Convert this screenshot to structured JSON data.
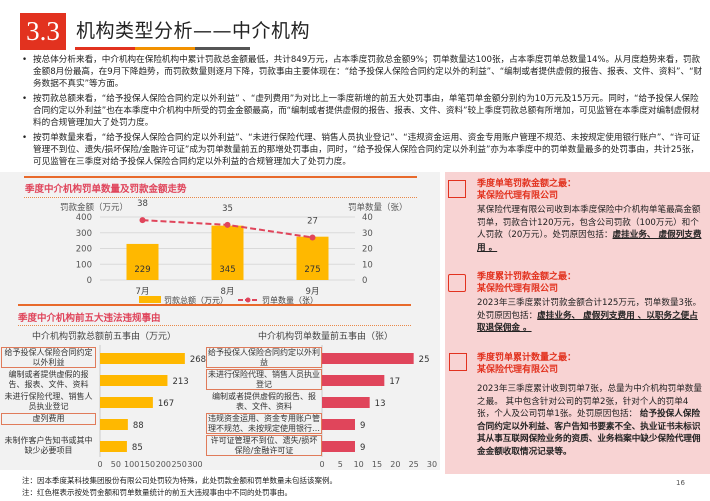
{
  "header": {
    "section_number": "3.3",
    "title": "机构类型分析——中介机构",
    "underline_colors": [
      "#e2321f",
      "#f29100",
      "#555555"
    ]
  },
  "bullets": [
    "按总体分析来看，中介机构在保险机构中累计罚款总金额最低，共计849万元，占本季度罚款总金额9%；罚单数量达100张，占本季度罚单总数量14%。从月度趋势来看，罚款金额8月份最高，在9月下降趋势，而罚款数量则逐月下降，罚款事由主要体现在：“给予投保人保险合同约定以外的利益”、“编制或者提供虚假的报告、报表、文件、资料”、“财务数据不真实”等方面。",
    "按罚款总额来看，“给予投保人保险合同约定以外利益” 、“虚列费用”为对比上一季度新增的前五大处罚事由，单笔罚单金额分别约为10万元及15万元。同时，“给予投保人保险合同约定以外利益”也在本季度中介机构中所受的罚金金额最高，而“编制或者提供虚假的报告、报表、文件、资料”较上季度罚款总额有所增加，可见监管在本季度对编制虚假材料的合规管理加大了处罚力度。",
    "按罚单数量来看，“给予投保人保险合同约定以外利益”、“未进行保险代理、销售人员执业登记”、“违规资金运用、资金专用账户管理不规范、未按规定使用银行账户”、“许可证管理不到位、遗失/损坏保险/金融许可证”成为罚单数量前五的那增处罚事由，同时，“给予投保人保险合同约定以外利益”亦为本季度中的罚单数量最多的处罚事由，共计25张，可见监管在三季度对给予投保人保险合同约定以外利益的合规管理加大了处罚力度。"
  ],
  "colors": {
    "accent": "#e2321f",
    "bar": "#ffb800",
    "line": "#e0455b",
    "section_title": "#e0455b",
    "right_panel": "#f8d3d3"
  },
  "chart_data": [
    {
      "type": "bar+line",
      "title": "季度中介机构罚单数量及罚款金额走势",
      "categories": [
        "7月",
        "8月",
        "9月"
      ],
      "series": [
        {
          "name": "罚款总额（万元）",
          "type": "bar",
          "axis": "left",
          "values": [
            229,
            345,
            275
          ]
        },
        {
          "name": "罚单数量（张）",
          "type": "line",
          "axis": "right",
          "values": [
            38,
            35,
            27
          ]
        }
      ],
      "ylabel": "罚款金额（万元）",
      "y2label": "罚单数量（张）",
      "ylim": [
        0,
        400
      ],
      "y2lim": [
        0,
        40
      ],
      "yticks": [
        0,
        100,
        200,
        300,
        400
      ],
      "y2ticks": [
        0,
        10,
        20,
        30,
        40
      ],
      "grid": true,
      "legend": "bottom"
    },
    {
      "type": "bar",
      "orientation": "horizontal",
      "section_title": "季度中介机构前五大违法违规事由",
      "title": "中介机构罚款总额前五事由（万元）",
      "categories": [
        "给予投保人保险合同约定以外利益",
        "编制或者提供虚假的报告、报表、文件、资料",
        "未进行保险代理、销售人员执业登记",
        "虚列费用",
        "未制作客户告知书或其中缺少必要项目"
      ],
      "values": [
        268,
        213,
        167,
        88,
        85
      ],
      "highlighted": [
        true,
        false,
        false,
        true,
        false
      ],
      "xlim": [
        0,
        300
      ],
      "xticks": [
        0,
        50,
        100,
        150,
        200,
        250,
        300
      ]
    },
    {
      "type": "bar",
      "orientation": "horizontal",
      "title": "中介机构罚单数量前五事由（张）",
      "categories": [
        "给予投保人保险合同约定以外利益",
        "未进行保险代理、销售人员执业登记",
        "编制或者提供虚假的报告、报表、文件、资料",
        "违规资金运用、资金专用账户管理不规范、未按规定使用银行…",
        "许可证管理不到位、遗失/损坏保险/金融许可证"
      ],
      "values": [
        25,
        17,
        13,
        9,
        9
      ],
      "highlighted": [
        true,
        true,
        false,
        true,
        true
      ],
      "xlim": [
        0,
        30
      ],
      "xticks": [
        0,
        5,
        10,
        15,
        20,
        25,
        30
      ]
    }
  ],
  "right": {
    "s1": {
      "heading1": "季度单笔罚款金额之最：",
      "heading2": "某保险代理有限公司",
      "text": "某保险代理有限公司收到本季度保险中介机构单笔最高金额罚单，罚款合计120万元，包含公司罚款（100万元）和个人罚款（20万元）。处罚原因包括：",
      "bold": "虚挂业务、 虚假列支费用 。",
      "icon": "sliders-icon"
    },
    "s2": {
      "heading1": "季度累计罚款金额之最：",
      "heading2": "某保险代理有限公司",
      "text": "2023年三季度累计罚款金额合计125万元，罚单数量3张。处罚原因包括：",
      "bold": "虚挂业务、 虚假列支费用 、以职务之便占取退保佣金 。",
      "icon": "circuit-icon"
    },
    "s3": {
      "heading1": "季度罚单累计数量之最：",
      "heading2": "某保险代理有限公司",
      "text": "2023年三季度累计收到罚单7张，总量为中介机构罚单数量之最。 其中包含针对公司的罚单2张，针对个人的罚单4张，个人及公司罚单1张。处罚原因包括： ",
      "bold": "给予投保人保险合同约定以外利益、客户告知书要素不全、执业证书未标识其从事互联网保险业务的资质、业务档案中缺少保险代理佣金金额收取情况记录等。",
      "icon": "magnifier-chart-icon"
    }
  },
  "footnotes": [
    "注：因本季度某科技集团股份有限公司处罚较为特殊，此处罚款金额和罚单数量未包括该案例。",
    "注：红色框表示按处罚金额和罚单数量统计的前五大违规事由中不同的处罚事由。"
  ],
  "page_number": "16"
}
